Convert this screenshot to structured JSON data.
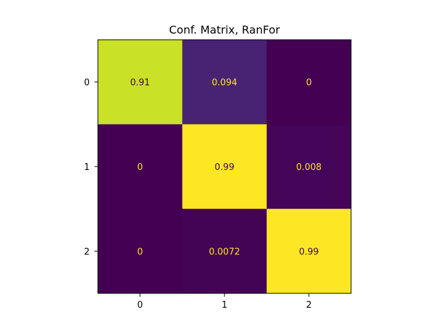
{
  "chart_data": {
    "type": "heatmap",
    "title": "Conf. Matrix, RanFor",
    "xlabel": "",
    "ylabel": "",
    "x_categories": [
      "0",
      "1",
      "2"
    ],
    "y_categories": [
      "0",
      "1",
      "2"
    ],
    "values": [
      [
        0.91,
        0.094,
        0
      ],
      [
        0,
        0.99,
        0.008
      ],
      [
        0,
        0.0072,
        0.99
      ]
    ],
    "value_labels": [
      [
        "0.91",
        "0.094",
        "0"
      ],
      [
        "0",
        "0.99",
        "0.008"
      ],
      [
        "0",
        "0.0072",
        "0.99"
      ]
    ],
    "colormap": "viridis",
    "color_range": [
      0,
      0.99
    ],
    "grid": false,
    "legend": "none",
    "colors": {
      "low": "#440154",
      "high": "#fde725",
      "text_on_dark": "#fde725",
      "text_on_light": "#440154"
    }
  }
}
